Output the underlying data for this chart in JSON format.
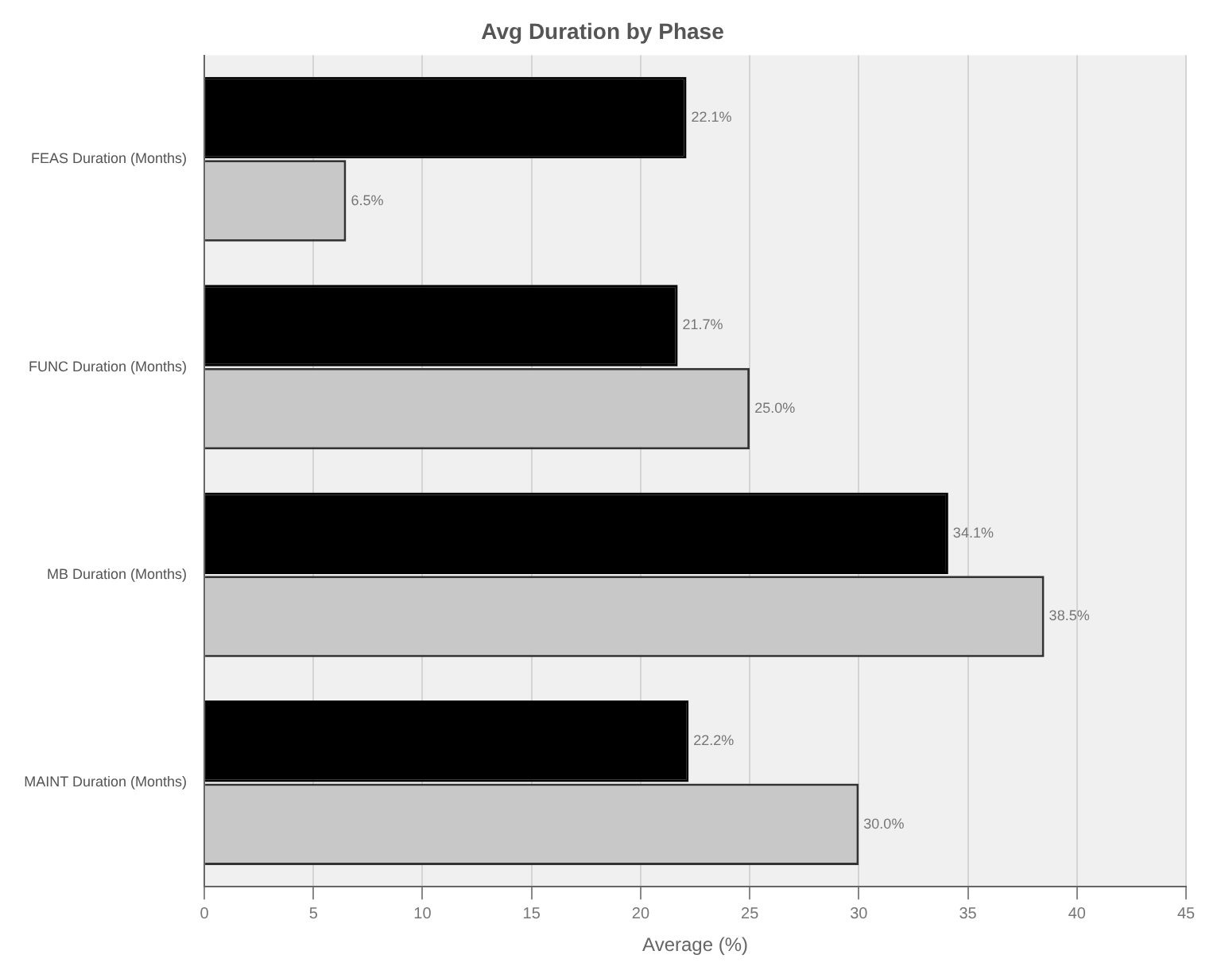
{
  "chart_data": {
    "type": "bar",
    "orientation": "horizontal",
    "title": "Avg Duration by Phase",
    "xlabel": "Average (%)",
    "categories": [
      "FEAS Duration (Months)",
      "FUNC Duration (Months)",
      "MB Duration (Months)",
      "MAINT Duration (Months)"
    ],
    "series": [
      {
        "color": "#000000",
        "values": [
          22.1,
          21.7,
          34.1,
          22.2
        ],
        "value_labels": [
          "22.1%",
          "21.7%",
          "34.1%",
          "22.2%"
        ]
      },
      {
        "color": "#c8c8c8",
        "values": [
          6.5,
          25.0,
          38.5,
          30.0
        ],
        "value_labels": [
          "6.5%",
          "25.0%",
          "38.5%",
          "30.0%"
        ]
      }
    ],
    "xlim": [
      0,
      45
    ],
    "xticks": [
      0,
      5,
      10,
      15,
      20,
      25,
      30,
      35,
      40,
      45
    ],
    "grid": "x",
    "legend": false
  }
}
